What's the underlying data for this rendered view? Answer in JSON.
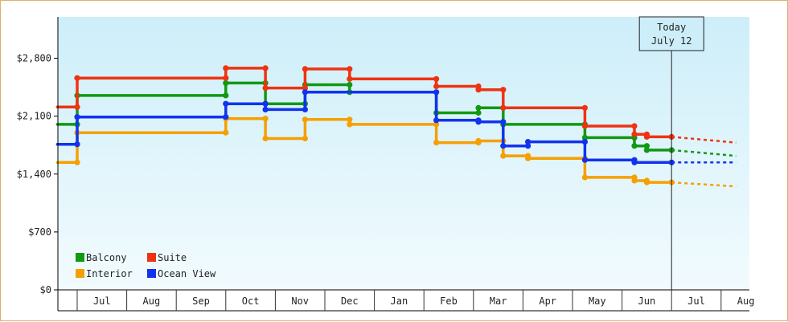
{
  "chart_data": {
    "type": "line",
    "title": "",
    "xlabel": "",
    "ylabel": "",
    "ylim": [
      0,
      3300
    ],
    "yticks": [
      0,
      700,
      1400,
      2100,
      2800
    ],
    "ytick_labels": [
      "$0",
      "$700",
      "$1,400",
      "$2,100",
      "$2,800"
    ],
    "x_months": [
      "Jul",
      "Aug",
      "Sep",
      "Oct",
      "Nov",
      "Dec",
      "Jan",
      "Feb",
      "Mar",
      "Apr",
      "May",
      "Jun",
      "Jul",
      "Aug"
    ],
    "legend": {
      "placement": "bottom-left"
    },
    "today_marker": {
      "line1": "Today",
      "line2": "July 12",
      "x": 12.0
    },
    "series": [
      {
        "name": "Balcony",
        "color": "#119911",
        "points": [
          [
            -0.4,
            2000
          ],
          [
            0,
            2000
          ],
          [
            0,
            2350
          ],
          [
            3.0,
            2350
          ],
          [
            3.0,
            2500
          ],
          [
            3.8,
            2500
          ],
          [
            3.8,
            2250
          ],
          [
            4.6,
            2250
          ],
          [
            4.6,
            2480
          ],
          [
            5.5,
            2480
          ],
          [
            5.5,
            2390
          ],
          [
            7.25,
            2390
          ],
          [
            7.25,
            2140
          ],
          [
            8.1,
            2140
          ],
          [
            8.1,
            2200
          ],
          [
            8.6,
            2200
          ],
          [
            8.6,
            2000
          ],
          [
            10.25,
            2000
          ],
          [
            10.25,
            1840
          ],
          [
            11.25,
            1840
          ],
          [
            11.25,
            1740
          ],
          [
            11.5,
            1740
          ],
          [
            11.5,
            1690
          ],
          [
            12.0,
            1690
          ]
        ],
        "forecast": [
          [
            12.0,
            1690
          ],
          [
            13.3,
            1620
          ]
        ]
      },
      {
        "name": "Suite",
        "color": "#ee3311",
        "points": [
          [
            -0.4,
            2210
          ],
          [
            0,
            2210
          ],
          [
            0,
            2560
          ],
          [
            3.0,
            2560
          ],
          [
            3.0,
            2680
          ],
          [
            3.8,
            2680
          ],
          [
            3.8,
            2440
          ],
          [
            4.6,
            2440
          ],
          [
            4.6,
            2670
          ],
          [
            5.5,
            2670
          ],
          [
            5.5,
            2550
          ],
          [
            7.25,
            2550
          ],
          [
            7.25,
            2460
          ],
          [
            8.1,
            2460
          ],
          [
            8.1,
            2420
          ],
          [
            8.6,
            2420
          ],
          [
            8.6,
            2200
          ],
          [
            10.25,
            2200
          ],
          [
            10.25,
            1980
          ],
          [
            11.25,
            1980
          ],
          [
            11.25,
            1880
          ],
          [
            11.5,
            1880
          ],
          [
            11.5,
            1850
          ],
          [
            12.0,
            1850
          ]
        ],
        "forecast": [
          [
            12.0,
            1850
          ],
          [
            13.3,
            1780
          ]
        ]
      },
      {
        "name": "Interior",
        "color": "#f5a000",
        "points": [
          [
            -0.4,
            1540
          ],
          [
            0,
            1540
          ],
          [
            0,
            1900
          ],
          [
            3.0,
            1900
          ],
          [
            3.0,
            2070
          ],
          [
            3.8,
            2070
          ],
          [
            3.8,
            1830
          ],
          [
            4.6,
            1830
          ],
          [
            4.6,
            2060
          ],
          [
            5.5,
            2060
          ],
          [
            5.5,
            2000
          ],
          [
            7.25,
            2000
          ],
          [
            7.25,
            1780
          ],
          [
            8.1,
            1780
          ],
          [
            8.1,
            1800
          ],
          [
            8.6,
            1800
          ],
          [
            8.6,
            1620
          ],
          [
            9.1,
            1620
          ],
          [
            9.1,
            1590
          ],
          [
            10.25,
            1590
          ],
          [
            10.25,
            1360
          ],
          [
            11.25,
            1360
          ],
          [
            11.25,
            1320
          ],
          [
            11.5,
            1320
          ],
          [
            11.5,
            1300
          ],
          [
            12.0,
            1300
          ]
        ],
        "forecast": [
          [
            12.0,
            1300
          ],
          [
            13.3,
            1250
          ]
        ]
      },
      {
        "name": "Ocean View",
        "color": "#1133ee",
        "points": [
          [
            -0.4,
            1760
          ],
          [
            0,
            1760
          ],
          [
            0,
            2090
          ],
          [
            3.0,
            2090
          ],
          [
            3.0,
            2250
          ],
          [
            3.8,
            2250
          ],
          [
            3.8,
            2180
          ],
          [
            4.6,
            2180
          ],
          [
            4.6,
            2390
          ],
          [
            7.25,
            2390
          ],
          [
            7.25,
            2050
          ],
          [
            8.1,
            2050
          ],
          [
            8.1,
            2030
          ],
          [
            8.6,
            2030
          ],
          [
            8.6,
            1740
          ],
          [
            9.1,
            1740
          ],
          [
            9.1,
            1790
          ],
          [
            10.25,
            1790
          ],
          [
            10.25,
            1570
          ],
          [
            11.25,
            1570
          ],
          [
            11.25,
            1540
          ],
          [
            12.0,
            1540
          ]
        ],
        "forecast": [
          [
            12.0,
            1540
          ],
          [
            13.3,
            1540
          ]
        ]
      }
    ]
  }
}
